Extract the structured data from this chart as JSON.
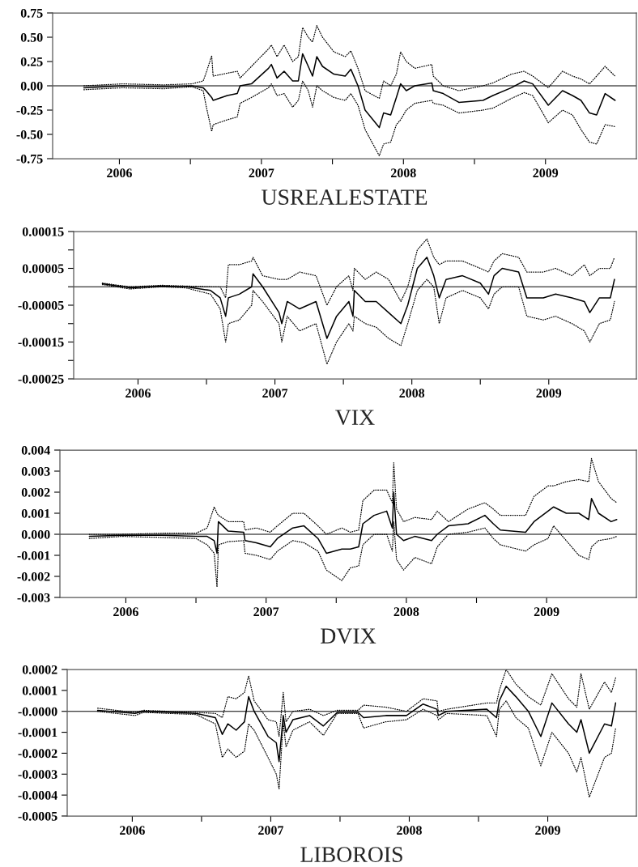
{
  "chart_data": [
    {
      "type": "line",
      "xlabel": "USREALESTATE",
      "xlim": [
        2006.03,
        2010.14
      ],
      "ylim": [
        -0.75,
        0.75
      ],
      "xticks": [
        {
          "value": 2006.5,
          "label": "2006"
        },
        {
          "value": 2007,
          "label": null
        },
        {
          "value": 2007.5,
          "label": "2007"
        },
        {
          "value": 2008,
          "label": null
        },
        {
          "value": 2008.5,
          "label": "2008"
        },
        {
          "value": 2009,
          "label": null
        },
        {
          "value": 2009.5,
          "label": "2009"
        }
      ],
      "yticks": [
        {
          "value": 0.75,
          "label": "0.75"
        },
        {
          "value": 0.5,
          "label": "0.50"
        },
        {
          "value": 0.25,
          "label": "0.25"
        },
        {
          "value": 0,
          "label": "0.00"
        },
        {
          "value": -0.25,
          "label": "-0.25"
        },
        {
          "value": -0.5,
          "label": "-0.50"
        },
        {
          "value": -0.75,
          "label": "-0.75"
        }
      ],
      "ref_lines": [
        {
          "axis": "y",
          "value": 0,
          "color": "#000000"
        }
      ],
      "x": [
        2006.25,
        2006.52,
        2006.81,
        2007.01,
        2007.09,
        2007.11,
        2007.15,
        2007.16,
        2007.26,
        2007.33,
        2007.35,
        2007.43,
        2007.55,
        2007.57,
        2007.61,
        2007.66,
        2007.72,
        2007.76,
        2007.79,
        2007.83,
        2007.86,
        2007.89,
        2007.93,
        2008.01,
        2008.09,
        2008.13,
        2008.18,
        2008.23,
        2008.33,
        2008.36,
        2008.41,
        2008.45,
        2008.48,
        2008.52,
        2008.58,
        2008.7,
        2008.71,
        2008.78,
        2008.89,
        2009.06,
        2009.13,
        2009.26,
        2009.35,
        2009.41,
        2009.52,
        2009.62,
        2009.69,
        2009.75,
        2009.81,
        2009.86,
        2009.92,
        2009.99
      ],
      "series": [
        {
          "color": "#000000",
          "line_style": "solid",
          "values": [
            -0.02,
            0.0,
            -0.01,
            0.0,
            -0.02,
            -0.05,
            -0.12,
            -0.15,
            -0.1,
            -0.08,
            0.0,
            0.02,
            0.18,
            0.22,
            0.08,
            0.15,
            0.05,
            0.05,
            0.33,
            0.2,
            0.1,
            0.3,
            0.2,
            0.12,
            0.1,
            0.17,
            0.0,
            -0.25,
            -0.43,
            -0.28,
            -0.3,
            -0.12,
            0.02,
            -0.05,
            0.0,
            0.03,
            -0.05,
            -0.08,
            -0.17,
            -0.15,
            -0.1,
            -0.02,
            0.05,
            0.02,
            -0.2,
            -0.05,
            -0.1,
            -0.15,
            -0.28,
            -0.3,
            -0.08,
            -0.15
          ]
        },
        {
          "color": "#000000",
          "line_style": "dotted",
          "values": [
            0.0,
            0.02,
            0.01,
            0.02,
            0.05,
            0.13,
            0.31,
            0.1,
            0.13,
            0.15,
            0.08,
            0.2,
            0.38,
            0.42,
            0.3,
            0.42,
            0.25,
            0.3,
            0.6,
            0.5,
            0.45,
            0.62,
            0.5,
            0.35,
            0.3,
            0.36,
            0.18,
            -0.05,
            -0.13,
            0.05,
            0.0,
            0.12,
            0.35,
            0.25,
            0.18,
            0.22,
            0.1,
            0.0,
            -0.05,
            0.0,
            0.03,
            0.12,
            0.15,
            0.1,
            -0.02,
            0.15,
            0.1,
            0.07,
            0.02,
            0.1,
            0.2,
            0.1
          ]
        },
        {
          "color": "#000000",
          "line_style": "dotted",
          "values": [
            -0.04,
            -0.02,
            -0.03,
            -0.01,
            -0.05,
            -0.2,
            -0.47,
            -0.4,
            -0.35,
            -0.32,
            -0.18,
            -0.12,
            -0.02,
            0.02,
            -0.1,
            -0.08,
            -0.22,
            -0.15,
            0.05,
            -0.05,
            -0.22,
            0.0,
            -0.05,
            -0.12,
            -0.15,
            -0.08,
            -0.2,
            -0.45,
            -0.72,
            -0.6,
            -0.58,
            -0.4,
            -0.35,
            -0.25,
            -0.18,
            -0.15,
            -0.18,
            -0.2,
            -0.28,
            -0.25,
            -0.23,
            -0.13,
            -0.07,
            -0.1,
            -0.38,
            -0.25,
            -0.3,
            -0.45,
            -0.58,
            -0.6,
            -0.4,
            -0.42
          ]
        }
      ]
    },
    {
      "type": "line",
      "xlabel": "VIX",
      "xlim": [
        2006.03,
        2010.14
      ],
      "ylim": [
        -0.00025,
        0.00015
      ],
      "xticks": [
        {
          "value": 2006.5,
          "label": "2006"
        },
        {
          "value": 2007,
          "label": null
        },
        {
          "value": 2007.5,
          "label": "2007"
        },
        {
          "value": 2008,
          "label": null
        },
        {
          "value": 2008.5,
          "label": "2008"
        },
        {
          "value": 2009,
          "label": null
        },
        {
          "value": 2009.5,
          "label": "2009"
        }
      ],
      "yticks": [
        {
          "value": 0.00015,
          "label": "0.00015"
        },
        {
          "value": 0.0001,
          "label": null
        },
        {
          "value": 5e-05,
          "label": "0.00005"
        },
        {
          "value": 0,
          "label": null
        },
        {
          "value": -5e-05,
          "label": "-0.00005"
        },
        {
          "value": -0.0001,
          "label": null
        },
        {
          "value": -0.00015,
          "label": "-0.00015"
        },
        {
          "value": -0.0002,
          "label": null
        },
        {
          "value": -0.00025,
          "label": "-0.00025"
        }
      ],
      "ref_lines": [
        {
          "axis": "y",
          "value": 0,
          "color": "#000000"
        }
      ],
      "x": [
        2006.24,
        2006.44,
        2006.67,
        2006.85,
        2007.03,
        2007.1,
        2007.14,
        2007.16,
        2007.24,
        2007.33,
        2007.34,
        2007.41,
        2007.53,
        2007.55,
        2007.59,
        2007.68,
        2007.8,
        2007.88,
        2007.95,
        2008.04,
        2008.07,
        2008.08,
        2008.16,
        2008.24,
        2008.33,
        2008.42,
        2008.47,
        2008.54,
        2008.61,
        2008.66,
        2008.7,
        2008.75,
        2008.87,
        2009.0,
        2009.06,
        2009.1,
        2009.16,
        2009.28,
        2009.34,
        2009.46,
        2009.55,
        2009.67,
        2009.76,
        2009.8,
        2009.87,
        2009.95,
        2009.98
      ],
      "series": [
        {
          "color": "#000000",
          "line_style": "solid",
          "values": [
            8e-06,
            -3e-06,
            2e-06,
            0,
            -1e-05,
            -3e-05,
            -8e-05,
            -3e-05,
            -2e-05,
            0,
            3.5e-05,
            0,
            -7e-05,
            -0.0001,
            -4e-05,
            -6e-05,
            -4e-05,
            -0.00014,
            -8e-05,
            -4e-05,
            -8e-05,
            -1e-05,
            -4e-05,
            -4e-05,
            -7e-05,
            -0.0001,
            -5e-05,
            5e-05,
            8e-05,
            3e-05,
            -3e-05,
            2e-05,
            3e-05,
            1e-05,
            -2e-05,
            3e-05,
            5e-05,
            4e-05,
            -3e-05,
            -3e-05,
            -2e-05,
            -3e-05,
            -4e-05,
            -7e-05,
            -3e-05,
            -3e-05,
            2e-05
          ]
        },
        {
          "color": "#000000",
          "line_style": "dotted",
          "values": [
            1e-05,
            0,
            4e-06,
            2e-06,
            0,
            0,
            -3e-05,
            6e-05,
            6e-05,
            7e-05,
            8e-05,
            3e-05,
            2e-05,
            2e-05,
            2e-05,
            4e-05,
            3e-05,
            -5e-05,
            0,
            3e-05,
            -1e-05,
            5e-05,
            2e-05,
            4e-05,
            2e-05,
            -4e-05,
            0,
            0.0001,
            0.00013,
            8e-05,
            6e-05,
            7e-05,
            7e-05,
            5e-05,
            4e-05,
            7e-05,
            9e-05,
            8e-05,
            4e-05,
            4e-05,
            5e-05,
            3e-05,
            6e-05,
            3e-05,
            5e-05,
            5e-05,
            8e-05
          ]
        },
        {
          "color": "#000000",
          "line_style": "dotted",
          "values": [
            6e-06,
            -6e-06,
            0,
            -3e-06,
            -2e-05,
            -6e-05,
            -0.00015,
            -0.0001,
            -9e-05,
            -5e-05,
            -1e-05,
            -4e-05,
            -0.0001,
            -0.00015,
            -8e-05,
            -0.00012,
            -0.0001,
            -0.00021,
            -0.00015,
            -0.0001,
            -0.00012,
            -8e-05,
            -0.0001,
            -0.00011,
            -0.00014,
            -0.00016,
            -0.0001,
            -1e-05,
            2e-05,
            0,
            -0.0001,
            -3e-05,
            -1e-05,
            -3e-05,
            -6e-05,
            -2e-05,
            0,
            0,
            -8e-05,
            -9e-05,
            -8e-05,
            -0.0001,
            -0.00012,
            -0.00015,
            -0.0001,
            -9e-05,
            -4e-05
          ]
        }
      ]
    },
    {
      "type": "line",
      "xlabel": "DVIX",
      "xlim": [
        2006.03,
        2010.14
      ],
      "ylim": [
        -0.003,
        0.004
      ],
      "xticks": [
        {
          "value": 2006.5,
          "label": "2006"
        },
        {
          "value": 2007,
          "label": null
        },
        {
          "value": 2007.5,
          "label": "2007"
        },
        {
          "value": 2008,
          "label": null
        },
        {
          "value": 2008.5,
          "label": "2008"
        },
        {
          "value": 2009,
          "label": null
        },
        {
          "value": 2009.5,
          "label": "2009"
        }
      ],
      "yticks": [
        {
          "value": 0.004,
          "label": "0.004"
        },
        {
          "value": 0.003,
          "label": "0.003"
        },
        {
          "value": 0.002,
          "label": "0.002"
        },
        {
          "value": 0.001,
          "label": "0.001"
        },
        {
          "value": 0,
          "label": "0.000"
        },
        {
          "value": -0.001,
          "label": "-0.001"
        },
        {
          "value": -0.002,
          "label": "-0.002"
        },
        {
          "value": -0.003,
          "label": "-0.003"
        }
      ],
      "ref_lines": [
        {
          "axis": "y",
          "value": 0,
          "color": "#000000"
        }
      ],
      "x": [
        2006.24,
        2006.47,
        2006.76,
        2007.0,
        2007.08,
        2007.13,
        2007.15,
        2007.16,
        2007.23,
        2007.34,
        2007.35,
        2007.43,
        2007.53,
        2007.58,
        2007.69,
        2007.77,
        2007.87,
        2007.93,
        2008.04,
        2008.1,
        2008.16,
        2008.19,
        2008.27,
        2008.36,
        2008.4,
        2008.41,
        2008.43,
        2008.48,
        2008.56,
        2008.68,
        2008.72,
        2008.8,
        2008.94,
        2009.06,
        2009.12,
        2009.17,
        2009.35,
        2009.41,
        2009.51,
        2009.55,
        2009.64,
        2009.73,
        2009.8,
        2009.82,
        2009.87,
        2009.96,
        2010.0
      ],
      "series": [
        {
          "color": "#000000",
          "line_style": "solid",
          "values": [
            -0.0001,
            -5e-05,
            -5e-05,
            -0.0001,
            -0.0001,
            -0.0003,
            -0.0009,
            0.0006,
            0.00015,
            0.0001,
            -0.0003,
            -0.0004,
            -0.0006,
            -0.0002,
            0.0003,
            0.0004,
            -0.0002,
            -0.0009,
            -0.0007,
            -0.0007,
            -0.0006,
            0.0005,
            0.0009,
            0.0011,
            0.0003,
            0.002,
            0,
            -0.0003,
            -0.0001,
            -0.0003,
            0,
            0.0004,
            0.0005,
            0.0009,
            0.0005,
            0.0002,
            0.0001,
            0.0006,
            0.0011,
            0.0013,
            0.001,
            0.001,
            0.0007,
            0.0017,
            0.001,
            0.0006,
            0.0007
          ]
        },
        {
          "color": "#000000",
          "line_style": "dotted",
          "values": [
            0,
            0,
            5e-05,
            5e-05,
            0.0003,
            0.0013,
            0.001,
            0.0009,
            0.0006,
            0.0006,
            0.0002,
            0.0003,
            0.0001,
            0.0004,
            0.001,
            0.001,
            0.0004,
            0,
            0.0003,
            0.0001,
            0.0002,
            0.0016,
            0.0021,
            0.0021,
            0.0015,
            0.0034,
            0.0012,
            0.0006,
            0.0008,
            0.0007,
            0.0011,
            0.0006,
            0.0012,
            0.0015,
            0.0012,
            0.0009,
            0.0009,
            0.0018,
            0.0023,
            0.0023,
            0.0025,
            0.0026,
            0.0025,
            0.0036,
            0.0025,
            0.0017,
            0.0015
          ]
        },
        {
          "color": "#000000",
          "line_style": "dotted",
          "values": [
            -0.0002,
            -0.0001,
            -0.00015,
            -0.0002,
            -0.0005,
            -0.0009,
            -0.0025,
            -0.0005,
            -0.00035,
            -0.0003,
            -0.0009,
            -0.001,
            -0.0012,
            -0.0008,
            -0.0003,
            -0.0004,
            -0.0008,
            -0.0017,
            -0.0022,
            -0.0016,
            -0.0015,
            -0.0005,
            0,
            0,
            -0.0008,
            0.0006,
            -0.0012,
            -0.0017,
            -0.0011,
            -0.0014,
            -0.0006,
            0,
            0.0001,
            0.0003,
            -0.0002,
            -0.0005,
            -0.0008,
            -0.0005,
            -0.0002,
            0.0004,
            -0.0003,
            -0.001,
            -0.0012,
            -0.0006,
            -0.0003,
            -0.0002,
            -0.0001
          ]
        }
      ]
    },
    {
      "type": "line",
      "xlabel": "LIBOROIS",
      "xlim": [
        2006.03,
        2010.14
      ],
      "ylim": [
        -0.0005,
        0.0002
      ],
      "xticks": [
        {
          "value": 2006.5,
          "label": "2006"
        },
        {
          "value": 2007,
          "label": null
        },
        {
          "value": 2007.5,
          "label": "2007"
        },
        {
          "value": 2008,
          "label": null
        },
        {
          "value": 2008.5,
          "label": "2008"
        },
        {
          "value": 2009,
          "label": null
        },
        {
          "value": 2009.5,
          "label": "2009"
        }
      ],
      "yticks": [
        {
          "value": 0.0002,
          "label": "0.0002"
        },
        {
          "value": 0.0001,
          "label": "0.0001"
        },
        {
          "value": 0,
          "label": "-0.0000"
        },
        {
          "value": -0.0001,
          "label": "-0.0001"
        },
        {
          "value": -0.0002,
          "label": "-0.0002"
        },
        {
          "value": -0.0003,
          "label": "-0.0003"
        },
        {
          "value": -0.0004,
          "label": "-0.0004"
        },
        {
          "value": -0.0005,
          "label": "-0.0005"
        }
      ],
      "ref_lines": [
        {
          "axis": "y",
          "value": 0,
          "color": "#000000"
        }
      ],
      "x": [
        2006.25,
        2006.52,
        2006.58,
        2006.96,
        2007.1,
        2007.15,
        2007.19,
        2007.25,
        2007.31,
        2007.34,
        2007.38,
        2007.48,
        2007.54,
        2007.56,
        2007.59,
        2007.61,
        2007.66,
        2007.78,
        2007.88,
        2007.98,
        2008.13,
        2008.17,
        2008.33,
        2008.48,
        2008.6,
        2008.7,
        2008.71,
        2008.77,
        2009.06,
        2009.13,
        2009.15,
        2009.2,
        2009.27,
        2009.36,
        2009.45,
        2009.53,
        2009.65,
        2009.71,
        2009.74,
        2009.8,
        2009.91,
        2009.96,
        2009.99
      ],
      "series": [
        {
          "color": "#000000",
          "line_style": "solid",
          "values": [
            5e-06,
            -1e-05,
            0,
            -1e-05,
            -3e-05,
            -0.00011,
            -6e-05,
            -9e-05,
            -5e-05,
            7e-05,
            0,
            -0.00012,
            -0.00015,
            -0.00024,
            -2e-05,
            -0.0001,
            -4e-05,
            -2e-05,
            -7e-05,
            -5e-06,
            -5e-06,
            -3e-05,
            -2e-05,
            -2e-05,
            3.5e-05,
            1e-05,
            -2e-05,
            0,
            1e-05,
            -3e-05,
            5e-05,
            0.00012,
            7e-05,
            0,
            -0.00012,
            4e-05,
            -6e-05,
            -0.0001,
            -4e-05,
            -0.0002,
            -6e-05,
            -7e-05,
            4e-05
          ]
        },
        {
          "color": "#000000",
          "line_style": "dotted",
          "values": [
            1.5e-05,
            -5e-06,
            5e-06,
            -5e-06,
            -1e-05,
            -3e-05,
            7e-05,
            6e-05,
            9e-05,
            0.00017,
            5e-05,
            -4e-05,
            -5e-05,
            -0.00012,
            9e-05,
            -5e-05,
            0,
            1e-05,
            -2e-05,
            5e-06,
            5e-06,
            3e-05,
            2e-05,
            0,
            6e-05,
            5e-05,
            0,
            1e-05,
            4e-05,
            4e-05,
            0.0001,
            0.0002,
            0.00013,
            7e-05,
            3e-05,
            0.00018,
            6e-05,
            2e-05,
            0.00018,
            1e-05,
            0.00014,
            9e-05,
            0.00016
          ]
        },
        {
          "color": "#000000",
          "line_style": "dotted",
          "values": [
            0,
            -2e-05,
            -5e-06,
            -1.5e-05,
            -6e-05,
            -0.00022,
            -0.00018,
            -0.00022,
            -0.00019,
            -6e-05,
            -9e-05,
            -0.00022,
            -0.0003,
            -0.00037,
            -5e-05,
            -0.00017,
            -9e-05,
            -5e-05,
            -0.000115,
            -1e-05,
            -1e-05,
            -8e-05,
            -5e-05,
            -4e-05,
            1e-05,
            -2e-05,
            -4e-05,
            -1e-05,
            -2e-05,
            -0.00012,
            1e-05,
            5e-05,
            -3e-05,
            -8e-05,
            -0.00026,
            -0.0001,
            -0.0002,
            -0.00029,
            -0.00022,
            -0.00041,
            -0.00022,
            -0.0002,
            -8e-05
          ]
        }
      ]
    }
  ]
}
